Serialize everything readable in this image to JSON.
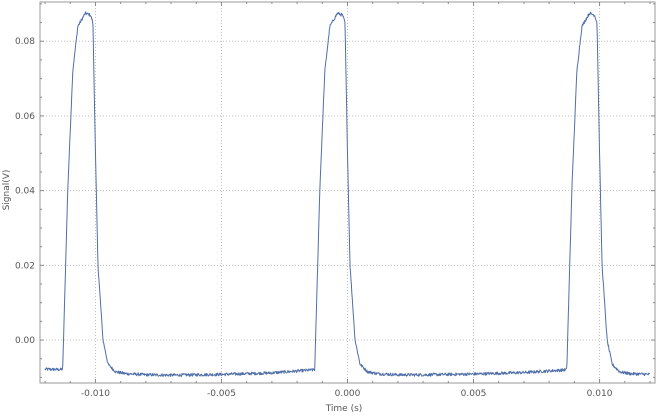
{
  "chart_data": {
    "type": "line",
    "title": "",
    "xlabel": "Time (s)",
    "ylabel": "Signal(V)",
    "xlim": [
      -0.0122,
      0.0122
    ],
    "ylim": [
      -0.0115,
      0.0905
    ],
    "x_ticks": [
      -0.01,
      -0.005,
      0.0,
      0.005,
      0.01
    ],
    "x_tick_labels": [
      "-0.010",
      "-0.005",
      "0.000",
      "0.005",
      "0.010"
    ],
    "y_ticks": [
      0.0,
      0.02,
      0.04,
      0.06,
      0.08
    ],
    "y_tick_labels": [
      "0.00",
      "0.02",
      "0.04",
      "0.06",
      "0.08"
    ],
    "grid": true,
    "grid_style": "dotted",
    "series_color": "#4f6fa8",
    "series": [
      {
        "period": 0.01,
        "baseline": -0.0093,
        "plateau": 0.0875,
        "noise_amplitude": 0.0004,
        "x": [
          -0.012,
          -0.0114,
          -0.0113,
          -0.0111,
          -0.0109,
          -0.0107,
          -0.0104,
          -0.0102,
          -0.0101,
          -0.01,
          -0.0099,
          -0.0097,
          -0.0095,
          -0.0092,
          -0.0088,
          -0.008,
          -0.007,
          -0.005,
          -0.003,
          -0.0014,
          -0.0013,
          -0.0011,
          -0.0009,
          -0.0007,
          -0.0004,
          -0.0002,
          -0.0001,
          0.0,
          0.0001,
          0.0003,
          0.0005,
          0.0008,
          0.0012,
          0.002,
          0.003,
          0.005,
          0.007,
          0.0086,
          0.0087,
          0.0089,
          0.0091,
          0.0093,
          0.0096,
          0.0098,
          0.0099,
          0.01,
          0.0101,
          0.0103,
          0.0105,
          0.0108,
          0.0112,
          0.012
        ],
        "y": [
          -0.0078,
          -0.0079,
          -0.0078,
          0.04,
          0.072,
          0.084,
          0.0875,
          0.087,
          0.085,
          0.05,
          0.02,
          0.0,
          -0.0065,
          -0.0085,
          -0.009,
          -0.0093,
          -0.0094,
          -0.0092,
          -0.0088,
          -0.008,
          -0.0079,
          0.04,
          0.072,
          0.084,
          0.0875,
          0.087,
          0.085,
          0.05,
          0.02,
          0.0,
          -0.0065,
          -0.0085,
          -0.009,
          -0.0093,
          -0.0093,
          -0.0091,
          -0.0087,
          -0.008,
          -0.0079,
          0.04,
          0.072,
          0.084,
          0.0875,
          0.087,
          0.085,
          0.05,
          0.02,
          0.0,
          -0.0065,
          -0.0085,
          -0.009,
          -0.0092
        ]
      }
    ]
  }
}
